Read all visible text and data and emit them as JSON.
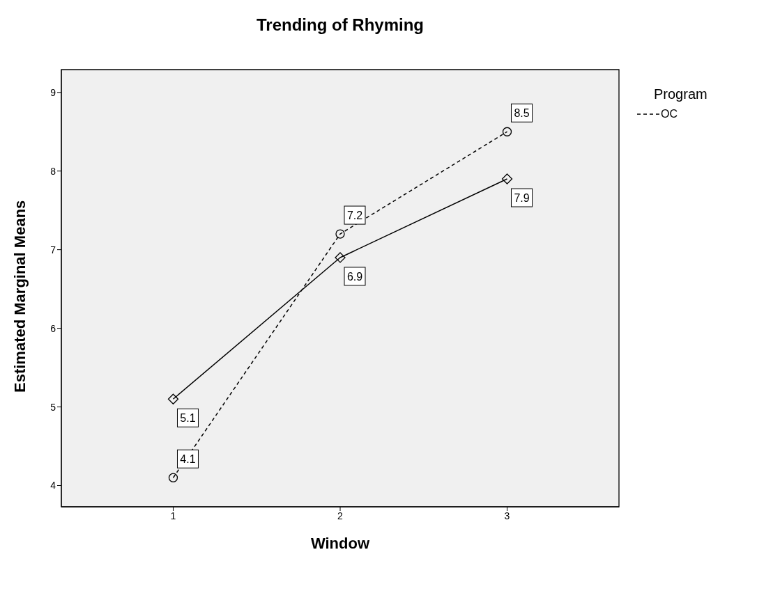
{
  "chart_data": {
    "type": "line",
    "title": "Trending of Rhyming",
    "xlabel": "Window",
    "ylabel": "Estimated Marginal Means",
    "legend_title": "Program",
    "x": [
      1,
      2,
      3
    ],
    "series": [
      {
        "name": "OC",
        "color": "#000000",
        "values": [
          4.1,
          7.2,
          8.5
        ],
        "line_style": "dashed",
        "marker": "circle"
      },
      {
        "color": "#000000",
        "values": [
          5.1,
          6.9,
          7.9
        ],
        "line_style": "solid",
        "marker": "diamond"
      }
    ],
    "xlim": [
      0.33,
      3.67
    ],
    "ylim": [
      3.73,
      9.29
    ],
    "xticks": [
      1,
      2,
      3
    ],
    "yticks": [
      4,
      5,
      6,
      7,
      8,
      9
    ],
    "grid": false,
    "legend": "right",
    "data_labels": true
  }
}
